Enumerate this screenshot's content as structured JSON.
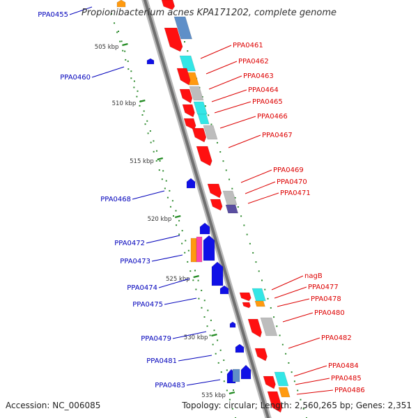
{
  "title": "Propionibacterium acnes KPA171202, complete genome",
  "footer": {
    "accession": "Accession: NC_006085",
    "topology": "Topology: circular; Length: 2,560,265 bp; Genes: 2,351"
  },
  "colors": {
    "forward_label": "#dd0000",
    "reverse_label": "#0000bb",
    "tick": "#228b22",
    "backbone": "#999999"
  },
  "scale_labels": [
    "505 kbp",
    "510 kbp",
    "515 kbp",
    "520 kbp",
    "525 kbp",
    "530 kbp",
    "535 kbp"
  ],
  "reverse_labels": [
    "PPA0455",
    "PPA0460",
    "PPA0468",
    "PPA0472",
    "PPA0473",
    "PPA0474",
    "PPA0475",
    "PPA0479",
    "PPA0481",
    "PPA0483"
  ],
  "forward_labels": [
    "PPA0461",
    "PPA0462",
    "PPA0463",
    "PPA0464",
    "PPA0465",
    "PPA0466",
    "PPA0467",
    "PPA0469",
    "PPA0470",
    "PPA0471",
    "nagB",
    "PPA0477",
    "PPA0478",
    "PPA0480",
    "PPA0482",
    "PPA0484",
    "PPA0485",
    "PPA0486"
  ]
}
